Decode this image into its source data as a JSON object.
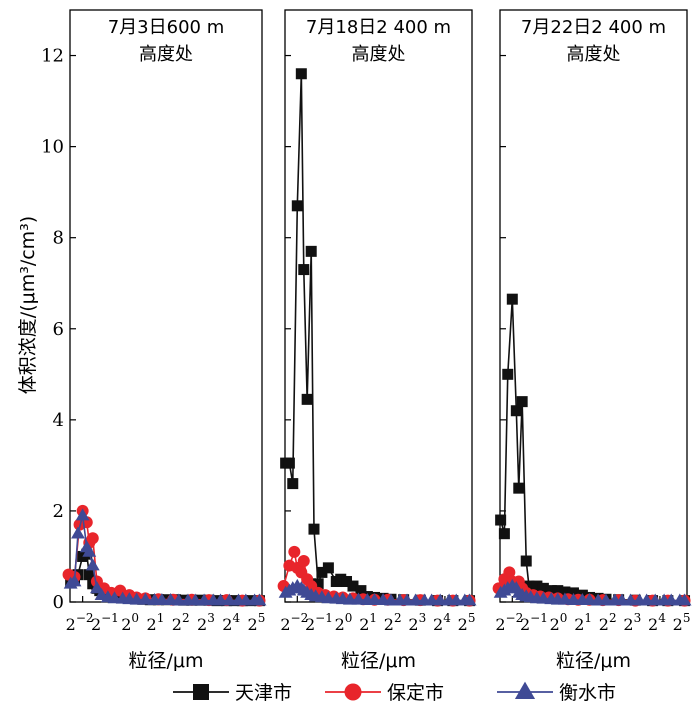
{
  "chart_data": {
    "type": "line",
    "ylabel": "体积浓度/(μm³/cm³)",
    "yticks": [
      "0",
      "2",
      "4",
      "6",
      "8",
      "10",
      "12"
    ],
    "ylim": [
      0,
      13
    ],
    "xscale": "log2",
    "xlim": [
      -2.5,
      5.1
    ],
    "xticks": [
      {
        "base": "2",
        "exp": "−2"
      },
      {
        "base": "2",
        "exp": "−1"
      },
      {
        "base": "2",
        "exp": "0"
      },
      {
        "base": "2",
        "exp": "1"
      },
      {
        "base": "2",
        "exp": "2"
      },
      {
        "base": "2",
        "exp": "3"
      },
      {
        "base": "2",
        "exp": "4"
      },
      {
        "base": "2",
        "exp": "5"
      }
    ],
    "panels": [
      {
        "title_line1": "7月3日600 m",
        "title_line2": "高度处",
        "xlabel": "粒径/μm",
        "series": [
          {
            "name": "天津市",
            "x": [
              0.18,
              0.2,
              0.22,
              0.25,
              0.28,
              0.3,
              0.33,
              0.37,
              0.4,
              0.45,
              0.55,
              0.7,
              0.85,
              1.0,
              1.3,
              1.6,
              2.0,
              2.5,
              3.2,
              4.0,
              5.0,
              6.3,
              8.0,
              10,
              13,
              16,
              20,
              25,
              32
            ],
            "values": [
              0.45,
              0.5,
              0.6,
              1.0,
              1.05,
              0.6,
              0.4,
              0.3,
              0.25,
              0.2,
              0.18,
              0.12,
              0.1,
              0.08,
              0.06,
              0.05,
              0.05,
              0.05,
              0.05,
              0.04,
              0.04,
              0.04,
              0.04,
              0.03,
              0.03,
              0.03,
              0.03,
              0.03,
              0.03
            ]
          },
          {
            "name": "保定市",
            "x": [
              0.17,
              0.2,
              0.23,
              0.25,
              0.28,
              0.3,
              0.33,
              0.37,
              0.45,
              0.55,
              0.7,
              0.9,
              1.1,
              1.4,
              2.0,
              3.0,
              5.0,
              8.0,
              13,
              20,
              32
            ],
            "values": [
              0.6,
              0.55,
              1.7,
              2.0,
              1.75,
              1.3,
              1.4,
              0.45,
              0.3,
              0.2,
              0.25,
              0.15,
              0.1,
              0.08,
              0.06,
              0.05,
              0.05,
              0.04,
              0.04,
              0.03,
              0.03
            ]
          },
          {
            "name": "衡水市",
            "x": [
              0.18,
              0.2,
              0.22,
              0.25,
              0.28,
              0.3,
              0.33,
              0.37,
              0.42,
              0.5,
              0.6,
              0.75,
              0.9,
              1.1,
              1.4,
              1.8,
              2.2,
              2.8,
              3.5,
              4.5,
              5.5,
              7,
              9,
              11,
              14,
              18,
              22,
              28,
              32
            ],
            "values": [
              0.4,
              0.45,
              1.5,
              1.9,
              1.2,
              1.1,
              0.8,
              0.3,
              0.15,
              0.1,
              0.08,
              0.07,
              0.06,
              0.05,
              0.05,
              0.04,
              0.04,
              0.04,
              0.03,
              0.03,
              0.03,
              0.03,
              0.03,
              0.03,
              0.03,
              0.03,
              0.03,
              0.03,
              0.03
            ]
          }
        ]
      },
      {
        "title_line1": "7月18日2 400 m",
        "title_line2": "高度处",
        "xlabel": "粒径/μm",
        "series": [
          {
            "name": "天津市",
            "x": [
              0.18,
              0.2,
              0.22,
              0.25,
              0.28,
              0.3,
              0.33,
              0.37,
              0.4,
              0.45,
              0.5,
              0.6,
              0.75,
              0.85,
              1.0,
              1.2,
              1.5,
              1.8,
              2.2,
              2.8,
              3.5,
              5.0,
              8.0,
              13,
              20,
              32
            ],
            "values": [
              3.05,
              3.05,
              2.6,
              8.7,
              11.6,
              7.3,
              4.45,
              7.7,
              1.6,
              0.4,
              0.65,
              0.75,
              0.45,
              0.5,
              0.45,
              0.35,
              0.25,
              0.12,
              0.1,
              0.08,
              0.06,
              0.05,
              0.04,
              0.03,
              0.03,
              0.03
            ]
          },
          {
            "name": "保定市",
            "x": [
              0.17,
              0.2,
              0.23,
              0.25,
              0.28,
              0.3,
              0.33,
              0.37,
              0.45,
              0.55,
              0.7,
              0.9,
              1.2,
              1.6,
              2.2,
              3.2,
              5.0,
              8.0,
              13,
              20,
              32
            ],
            "values": [
              0.35,
              0.8,
              1.1,
              0.75,
              0.65,
              0.9,
              0.5,
              0.35,
              0.2,
              0.15,
              0.12,
              0.1,
              0.08,
              0.06,
              0.05,
              0.05,
              0.04,
              0.04,
              0.03,
              0.03,
              0.03
            ]
          },
          {
            "name": "衡水市",
            "x": [
              0.18,
              0.2,
              0.22,
              0.25,
              0.28,
              0.3,
              0.33,
              0.37,
              0.42,
              0.5,
              0.6,
              0.75,
              0.9,
              1.1,
              1.4,
              1.8,
              2.2,
              2.8,
              3.5,
              4.5,
              5.5,
              7,
              9,
              11,
              14,
              18,
              22,
              28,
              32
            ],
            "values": [
              0.2,
              0.25,
              0.3,
              0.35,
              0.3,
              0.25,
              0.2,
              0.15,
              0.12,
              0.1,
              0.08,
              0.07,
              0.06,
              0.05,
              0.05,
              0.04,
              0.04,
              0.04,
              0.03,
              0.03,
              0.03,
              0.03,
              0.03,
              0.03,
              0.03,
              0.03,
              0.03,
              0.03,
              0.03
            ]
          }
        ]
      },
      {
        "title_line1": "7月22日2 400 m",
        "title_line2": "高度处",
        "xlabel": "粒径/μm",
        "series": [
          {
            "name": "天津市",
            "x": [
              0.18,
              0.2,
              0.22,
              0.25,
              0.28,
              0.3,
              0.33,
              0.37,
              0.4,
              0.45,
              0.5,
              0.6,
              0.75,
              0.9,
              1.1,
              1.4,
              1.8,
              2.2,
              2.8,
              3.5,
              5.0,
              8.0,
              13,
              20,
              32
            ],
            "values": [
              1.8,
              1.5,
              5.0,
              6.65,
              4.2,
              2.5,
              4.4,
              0.9,
              0.35,
              0.3,
              0.35,
              0.3,
              0.25,
              0.25,
              0.22,
              0.2,
              0.15,
              0.1,
              0.08,
              0.06,
              0.05,
              0.04,
              0.03,
              0.03,
              0.03
            ]
          },
          {
            "name": "保定市",
            "x": [
              0.17,
              0.2,
              0.23,
              0.25,
              0.28,
              0.3,
              0.33,
              0.37,
              0.45,
              0.55,
              0.7,
              0.9,
              1.2,
              1.6,
              2.2,
              3.2,
              5.0,
              8.0,
              13,
              20,
              32
            ],
            "values": [
              0.3,
              0.5,
              0.65,
              0.45,
              0.4,
              0.45,
              0.3,
              0.2,
              0.15,
              0.12,
              0.1,
              0.08,
              0.06,
              0.05,
              0.05,
              0.04,
              0.04,
              0.03,
              0.03,
              0.03,
              0.03
            ]
          },
          {
            "name": "衡水市",
            "x": [
              0.18,
              0.2,
              0.22,
              0.25,
              0.28,
              0.3,
              0.33,
              0.37,
              0.42,
              0.5,
              0.6,
              0.75,
              0.9,
              1.1,
              1.4,
              1.8,
              2.2,
              2.8,
              3.5,
              4.5,
              5.5,
              7,
              9,
              11,
              14,
              18,
              22,
              28,
              32
            ],
            "values": [
              0.2,
              0.25,
              0.3,
              0.35,
              0.3,
              0.2,
              0.15,
              0.12,
              0.1,
              0.08,
              0.07,
              0.06,
              0.05,
              0.05,
              0.04,
              0.04,
              0.04,
              0.03,
              0.03,
              0.03,
              0.03,
              0.03,
              0.03,
              0.03,
              0.03,
              0.03,
              0.03,
              0.03,
              0.03
            ]
          }
        ]
      }
    ],
    "legend": [
      {
        "name": "天津市",
        "marker": "square",
        "color": "#111111"
      },
      {
        "name": "保定市",
        "marker": "circle",
        "color": "#e8252b"
      },
      {
        "name": "衡水市",
        "marker": "triangle",
        "color": "#3f4a95"
      }
    ],
    "legend_position": "bottom"
  }
}
